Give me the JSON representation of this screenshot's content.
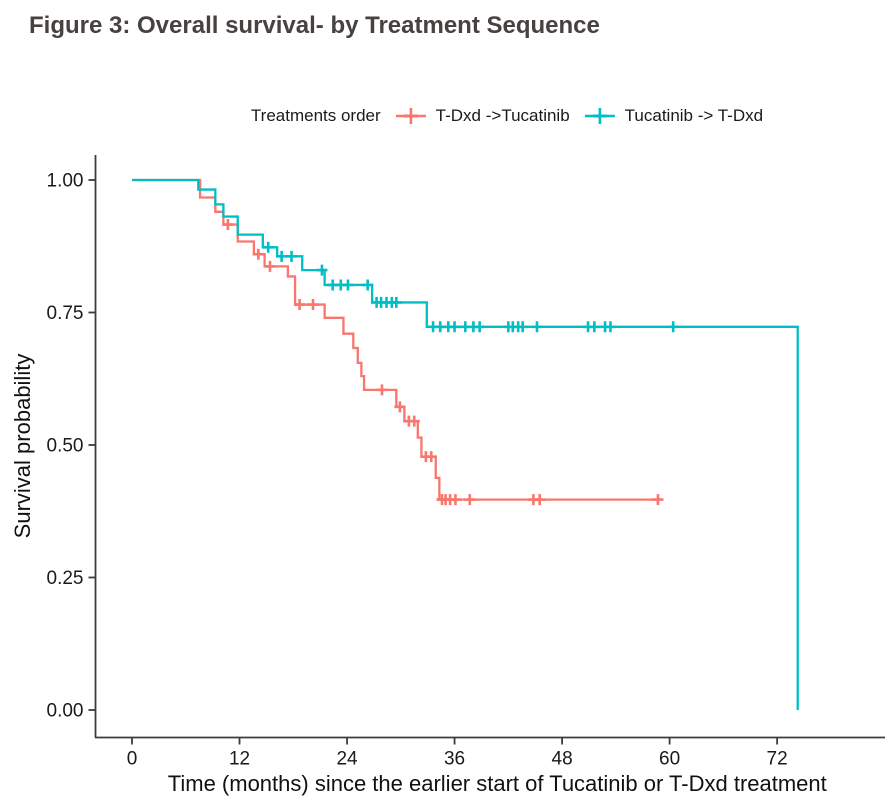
{
  "figure": {
    "title": "Figure 3: Overall survival- by Treatment Sequence"
  },
  "legend": {
    "title": "Treatments order",
    "items": [
      {
        "label": "T-Dxd ->Tucatinib",
        "color": "#F8766D"
      },
      {
        "label": "Tucatinib -> T-Dxd",
        "color": "#00BFC4"
      }
    ]
  },
  "chart_data": {
    "type": "line",
    "subtype": "kaplan-meier-step",
    "title": "Figure 3: Overall survival- by Treatment Sequence",
    "xlabel": "Time (months) since the earlier start of Tucatinib or T-Dxd treatment",
    "ylabel": "Survival probability",
    "xlim": [
      0,
      78
    ],
    "ylim": [
      0,
      1.0
    ],
    "grid": false,
    "legend_position": "top",
    "xticks": [
      {
        "value": 0,
        "label": "0"
      },
      {
        "value": 12,
        "label": "12"
      },
      {
        "value": 24,
        "label": "24"
      },
      {
        "value": 36,
        "label": "36"
      },
      {
        "value": 48,
        "label": "48"
      },
      {
        "value": 60,
        "label": "60"
      },
      {
        "value": 72,
        "label": "72"
      }
    ],
    "yticks": [
      {
        "value": 0.0,
        "label": "0.00"
      },
      {
        "value": 0.25,
        "label": "0.25"
      },
      {
        "value": 0.5,
        "label": "0.50"
      },
      {
        "value": 0.75,
        "label": "0.75"
      },
      {
        "value": 1.0,
        "label": "1.00"
      }
    ],
    "series": [
      {
        "name": "T-Dxd ->Tucatinib",
        "color": "#F8766D",
        "points": [
          [
            0,
            1.0
          ],
          [
            7.6,
            0.967
          ],
          [
            9.3,
            0.94
          ],
          [
            10.2,
            0.916
          ],
          [
            11.8,
            0.884
          ],
          [
            13.6,
            0.86
          ],
          [
            14.8,
            0.837
          ],
          [
            17.4,
            0.818
          ],
          [
            18.2,
            0.765
          ],
          [
            21.5,
            0.74
          ],
          [
            23.6,
            0.71
          ],
          [
            24.7,
            0.683
          ],
          [
            25.2,
            0.655
          ],
          [
            25.6,
            0.63
          ],
          [
            25.9,
            0.604
          ],
          [
            29.5,
            0.572
          ],
          [
            30.4,
            0.545
          ],
          [
            31.9,
            0.514
          ],
          [
            32.3,
            0.478
          ],
          [
            33.9,
            0.438
          ],
          [
            34.3,
            0.397
          ],
          [
            58.7,
            0.397
          ]
        ],
        "censors": [
          [
            10.7,
            0.916
          ],
          [
            14.1,
            0.86
          ],
          [
            15.4,
            0.837
          ],
          [
            18.7,
            0.765
          ],
          [
            20.2,
            0.765
          ],
          [
            27.9,
            0.604
          ],
          [
            29.9,
            0.572
          ],
          [
            30.9,
            0.545
          ],
          [
            31.5,
            0.545
          ],
          [
            32.8,
            0.478
          ],
          [
            33.4,
            0.478
          ],
          [
            34.6,
            0.397
          ],
          [
            35.0,
            0.397
          ],
          [
            35.5,
            0.397
          ],
          [
            36.1,
            0.397
          ],
          [
            37.7,
            0.397
          ],
          [
            44.8,
            0.397
          ],
          [
            45.5,
            0.397
          ],
          [
            58.7,
            0.397
          ]
        ]
      },
      {
        "name": "Tucatinib -> T-Dxd",
        "color": "#00BFC4",
        "points": [
          [
            0,
            1.0
          ],
          [
            7.4,
            0.982
          ],
          [
            9.3,
            0.954
          ],
          [
            10.2,
            0.931
          ],
          [
            11.8,
            0.897
          ],
          [
            14.6,
            0.873
          ],
          [
            16.2,
            0.856
          ],
          [
            19.0,
            0.83
          ],
          [
            21.5,
            0.802
          ],
          [
            26.8,
            0.769
          ],
          [
            32.9,
            0.723
          ],
          [
            74.3,
            0.0
          ]
        ],
        "censors": [
          [
            15.2,
            0.873
          ],
          [
            16.7,
            0.856
          ],
          [
            17.8,
            0.856
          ],
          [
            21.2,
            0.83
          ],
          [
            22.4,
            0.802
          ],
          [
            23.3,
            0.802
          ],
          [
            24.1,
            0.802
          ],
          [
            26.3,
            0.802
          ],
          [
            27.3,
            0.769
          ],
          [
            27.8,
            0.769
          ],
          [
            28.4,
            0.769
          ],
          [
            29.0,
            0.769
          ],
          [
            29.5,
            0.769
          ],
          [
            33.6,
            0.723
          ],
          [
            34.4,
            0.723
          ],
          [
            35.3,
            0.723
          ],
          [
            36.0,
            0.723
          ],
          [
            37.2,
            0.723
          ],
          [
            38.1,
            0.723
          ],
          [
            38.8,
            0.723
          ],
          [
            42.0,
            0.723
          ],
          [
            42.5,
            0.723
          ],
          [
            43.1,
            0.723
          ],
          [
            43.6,
            0.723
          ],
          [
            45.2,
            0.723
          ],
          [
            50.9,
            0.723
          ],
          [
            51.6,
            0.723
          ],
          [
            52.8,
            0.723
          ],
          [
            53.4,
            0.723
          ],
          [
            60.4,
            0.723
          ]
        ]
      }
    ]
  }
}
